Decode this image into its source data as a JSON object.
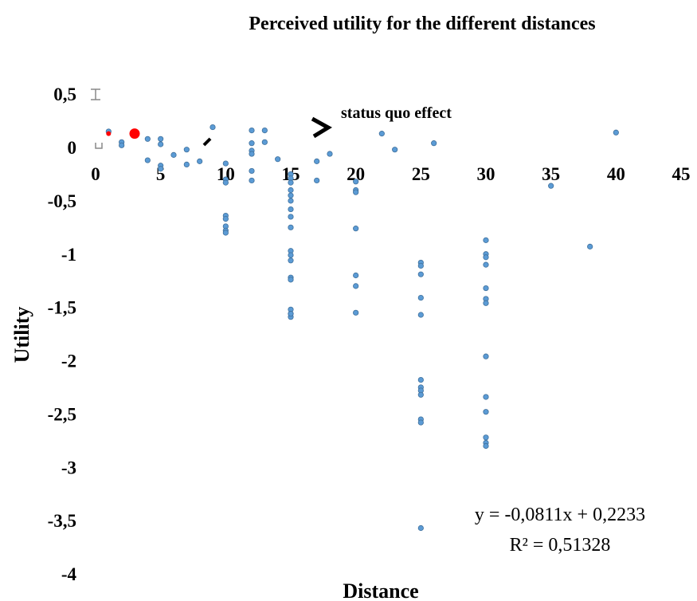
{
  "chart_data": {
    "type": "scatter",
    "title": "Perceived utility for the different distances",
    "xlabel": "Distance",
    "ylabel": "Utility",
    "xlim": [
      0,
      45
    ],
    "ylim": [
      -4,
      0.5
    ],
    "x_ticks": [
      "0",
      "5",
      "10",
      "15",
      "20",
      "25",
      "30",
      "35",
      "40",
      "45"
    ],
    "y_ticks": [
      "0,5",
      "0",
      "-0,5",
      "-1",
      "-1,5",
      "-2",
      "-2,5",
      "-3",
      "-3,5",
      "-4"
    ],
    "grid": false,
    "legend": "none",
    "marker_color": "#5B9BD5",
    "highlight_color": "#FF0000",
    "annotation": "status quo effect",
    "trendline": {
      "equation": "y = -0,0811x + 0,2233",
      "r_squared": "R² = 0,51328",
      "slope": -0.0811,
      "intercept": 0.2233
    },
    "series": [
      {
        "x": [
          1,
          2,
          2,
          3,
          4,
          4,
          5,
          5,
          5,
          5,
          6,
          7,
          7,
          8,
          9,
          10,
          10,
          10,
          10,
          10,
          10,
          10,
          10,
          12,
          12,
          12,
          12,
          12,
          12,
          13,
          13,
          14,
          15,
          15,
          15,
          15,
          15,
          15,
          15,
          15,
          15,
          15,
          15,
          15,
          15,
          15,
          15,
          15,
          15,
          15,
          17,
          17,
          18,
          20,
          20,
          20,
          20,
          20,
          20,
          20,
          22,
          23,
          25,
          25,
          25,
          25,
          25,
          25,
          25,
          25,
          25,
          25,
          25,
          25,
          26,
          30,
          30,
          30,
          30,
          30,
          30,
          30,
          30,
          30,
          30,
          30,
          30,
          30,
          35,
          38,
          40
        ],
        "y": [
          0.15,
          0.05,
          0.02,
          0.12,
          0.08,
          -0.12,
          0.08,
          0.03,
          -0.17,
          -0.2,
          -0.07,
          -0.02,
          -0.16,
          -0.13,
          0.19,
          -0.15,
          -0.3,
          -0.33,
          -0.64,
          -0.67,
          -0.74,
          -0.78,
          -0.8,
          0.16,
          0.04,
          -0.03,
          -0.06,
          -0.22,
          -0.31,
          0.16,
          0.05,
          -0.11,
          -0.25,
          -0.29,
          -0.33,
          -0.4,
          -0.45,
          -0.5,
          -0.58,
          -0.65,
          -0.75,
          -0.97,
          -1.01,
          -1.06,
          -1.22,
          -1.24,
          -1.52,
          -1.56,
          -1.59,
          -1.56,
          -0.13,
          -0.31,
          -0.06,
          -0.32,
          -0.4,
          -0.42,
          -0.76,
          -1.2,
          -1.3,
          -1.55,
          0.13,
          -0.02,
          -1.08,
          -1.11,
          -1.19,
          -1.41,
          -1.57,
          -2.18,
          -2.25,
          -2.28,
          -2.32,
          -2.55,
          -2.58,
          -3.57,
          0.04,
          -0.87,
          -1.0,
          -1.03,
          -1.1,
          -1.32,
          -1.42,
          -1.46,
          -1.96,
          -2.34,
          -2.48,
          -2.72,
          -2.77,
          -2.8,
          -0.36,
          -0.93,
          0.14
        ]
      }
    ],
    "highlight_points": [
      {
        "x": 1,
        "y": 0.13
      },
      {
        "x": 3,
        "y": 0.13
      }
    ]
  }
}
